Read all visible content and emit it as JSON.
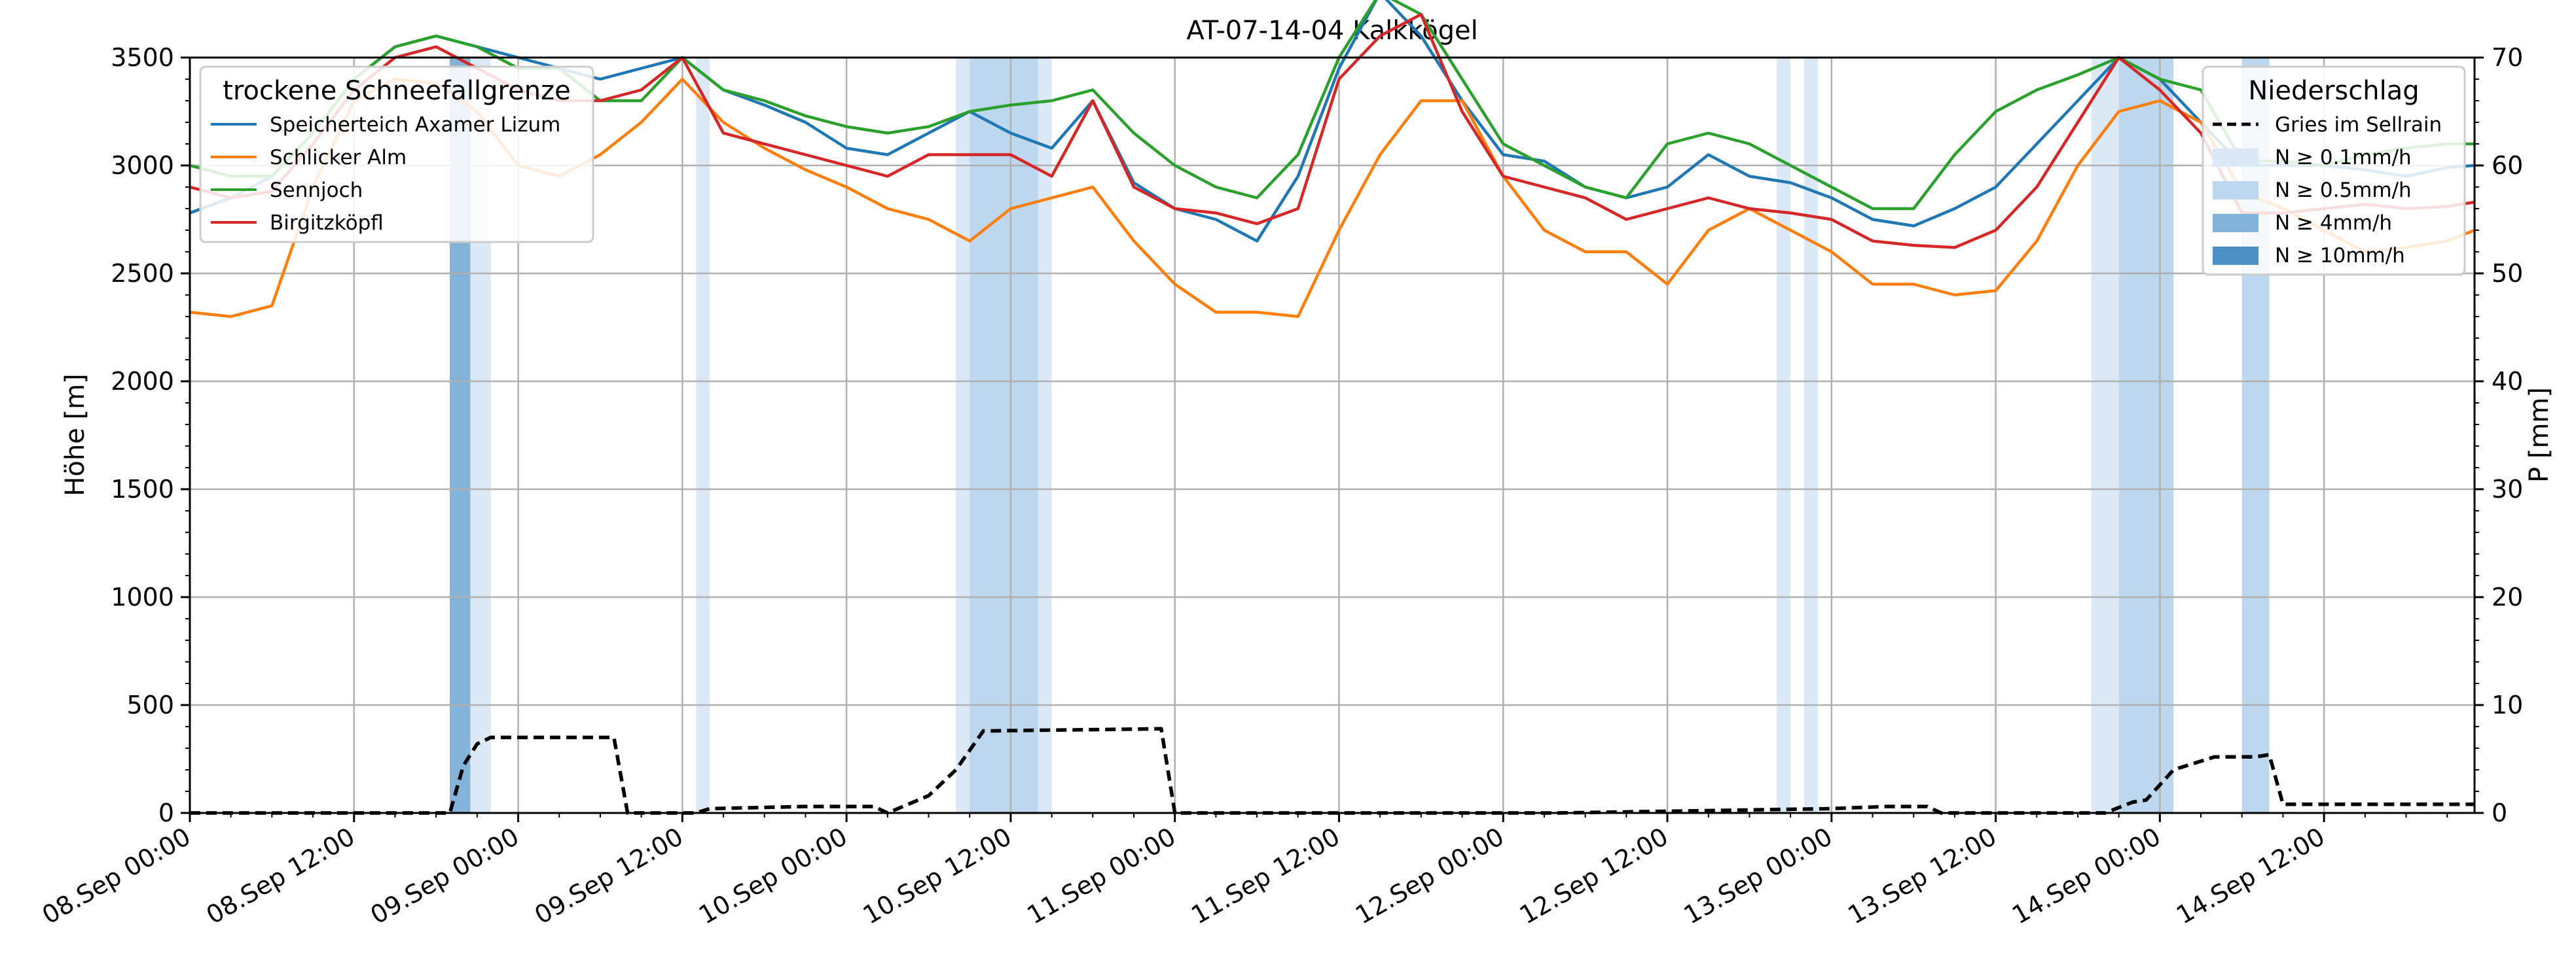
{
  "chart_data": {
    "type": "line",
    "title": "AT-07-14-04 Kalkkögel",
    "ylabel_left": "Höhe [m]",
    "ylabel_right": "P [mm]",
    "ylim_left": [
      0,
      3500
    ],
    "ylim_right": [
      0,
      70
    ],
    "yticks_left": [
      "0",
      "500",
      "1000",
      "1500",
      "2000",
      "2500",
      "3000",
      "3500"
    ],
    "yticks_right": [
      "0",
      "10",
      "20",
      "30",
      "40",
      "50",
      "60",
      "70"
    ],
    "x_range_hours": [
      0,
      167
    ],
    "x_tick_hours": [
      0,
      12,
      24,
      36,
      48,
      60,
      72,
      84,
      96,
      108,
      120,
      132,
      144,
      156
    ],
    "x_tick_labels": [
      "08.Sep 00:00",
      "08.Sep 12:00",
      "09.Sep 00:00",
      "09.Sep 12:00",
      "10.Sep 00:00",
      "10.Sep 12:00",
      "11.Sep 00:00",
      "11.Sep 12:00",
      "12.Sep 00:00",
      "12.Sep 12:00",
      "13.Sep 00:00",
      "13.Sep 12:00",
      "14.Sep 00:00",
      "14.Sep 12:00"
    ],
    "grid": true,
    "legend_left": {
      "title": "trockene Schneefallgrenze",
      "placement": "top-left",
      "entries": [
        "Speicherteich Axamer Lizum",
        "Schlicker Alm",
        "Sennjoch",
        "Birgitzköpfl"
      ]
    },
    "legend_right": {
      "title": "Niederschlag",
      "placement": "top-right",
      "entries": [
        "Gries im Sellrain",
        "N ≥ 0.1mm/h",
        "N ≥ 0.5mm/h",
        "N ≥ 4mm/h",
        "N ≥ 10mm/h"
      ]
    },
    "series": [
      {
        "name": "Speicherteich Axamer Lizum",
        "color": "#1f77b4",
        "x": [
          0,
          3,
          6,
          9,
          12,
          15,
          18,
          21,
          24,
          27,
          30,
          33,
          36,
          39,
          42,
          45,
          48,
          51,
          54,
          57,
          60,
          63,
          66,
          69,
          72,
          75,
          78,
          81,
          84,
          87,
          90,
          93,
          96,
          99,
          102,
          105,
          108,
          111,
          114,
          117,
          120,
          123,
          126,
          129,
          132,
          135,
          138,
          141,
          144,
          147,
          150,
          153,
          156,
          159,
          162,
          165,
          167
        ],
        "y": [
          2780,
          2850,
          2950,
          3150,
          3400,
          3550,
          3600,
          3550,
          3500,
          3450,
          3400,
          3450,
          3500,
          3350,
          3280,
          3200,
          3080,
          3050,
          3150,
          3250,
          3150,
          3080,
          3300,
          2920,
          2800,
          2750,
          2650,
          2950,
          3450,
          3800,
          3600,
          3300,
          3050,
          3020,
          2900,
          2850,
          2900,
          3050,
          2950,
          2920,
          2850,
          2750,
          2720,
          2800,
          2900,
          3100,
          3300,
          3500,
          3400,
          3200,
          3000,
          3000,
          3000,
          2980,
          2950,
          2990,
          3000
        ]
      },
      {
        "name": "Schlicker Alm",
        "color": "#ff7f0e",
        "x": [
          0,
          3,
          6,
          9,
          12,
          15,
          18,
          21,
          24,
          27,
          30,
          33,
          36,
          39,
          42,
          45,
          48,
          51,
          54,
          57,
          60,
          63,
          66,
          69,
          72,
          75,
          78,
          81,
          84,
          87,
          90,
          93,
          96,
          99,
          102,
          105,
          108,
          111,
          114,
          117,
          120,
          123,
          126,
          129,
          132,
          135,
          138,
          141,
          144,
          147,
          150,
          153,
          156,
          159,
          162,
          165,
          167
        ],
        "y": [
          2320,
          2300,
          2350,
          2900,
          3300,
          3400,
          3380,
          3250,
          3000,
          2950,
          3050,
          3200,
          3400,
          3200,
          3080,
          2980,
          2900,
          2800,
          2750,
          2650,
          2800,
          2850,
          2900,
          2650,
          2450,
          2320,
          2320,
          2300,
          2700,
          3050,
          3300,
          3300,
          2950,
          2700,
          2600,
          2600,
          2450,
          2700,
          2800,
          2700,
          2600,
          2450,
          2450,
          2400,
          2420,
          2650,
          3000,
          3250,
          3300,
          3200,
          2880,
          2800,
          2700,
          2600,
          2620,
          2650,
          2700
        ]
      },
      {
        "name": "Sennjoch",
        "color": "#2ca02c",
        "x": [
          0,
          3,
          6,
          9,
          12,
          15,
          18,
          21,
          24,
          27,
          30,
          33,
          36,
          39,
          42,
          45,
          48,
          51,
          54,
          57,
          60,
          63,
          66,
          69,
          72,
          75,
          78,
          81,
          84,
          87,
          90,
          93,
          96,
          99,
          102,
          105,
          108,
          111,
          114,
          117,
          120,
          123,
          126,
          129,
          132,
          135,
          138,
          141,
          144,
          147,
          150,
          153,
          156,
          159,
          162,
          165,
          167
        ],
        "y": [
          3000,
          2950,
          2950,
          3150,
          3400,
          3550,
          3600,
          3550,
          3450,
          3450,
          3300,
          3300,
          3500,
          3350,
          3300,
          3230,
          3180,
          3150,
          3180,
          3250,
          3280,
          3300,
          3350,
          3150,
          3000,
          2900,
          2850,
          3050,
          3500,
          3800,
          3700,
          3400,
          3100,
          3000,
          2900,
          2850,
          3100,
          3150,
          3100,
          3000,
          2900,
          2800,
          2800,
          3050,
          3250,
          3350,
          3420,
          3500,
          3400,
          3350,
          3020,
          3020,
          3000,
          3050,
          3080,
          3100,
          3100
        ]
      },
      {
        "name": "Birgitzköpfl",
        "color": "#d62728",
        "x": [
          0,
          3,
          6,
          9,
          12,
          15,
          18,
          21,
          24,
          27,
          30,
          33,
          36,
          39,
          42,
          45,
          48,
          51,
          54,
          57,
          60,
          63,
          66,
          69,
          72,
          75,
          78,
          81,
          84,
          87,
          90,
          93,
          96,
          99,
          102,
          105,
          108,
          111,
          114,
          117,
          120,
          123,
          126,
          129,
          132,
          135,
          138,
          141,
          144,
          147,
          150,
          153,
          156,
          159,
          162,
          165,
          167
        ],
        "y": [
          2900,
          2850,
          2880,
          3100,
          3350,
          3500,
          3550,
          3450,
          3350,
          3300,
          3300,
          3350,
          3500,
          3150,
          3100,
          3050,
          3000,
          2950,
          3050,
          3050,
          3050,
          2950,
          3300,
          2900,
          2800,
          2780,
          2730,
          2800,
          3400,
          3600,
          3700,
          3250,
          2950,
          2900,
          2850,
          2750,
          2800,
          2850,
          2800,
          2780,
          2750,
          2650,
          2630,
          2620,
          2700,
          2900,
          3200,
          3500,
          3350,
          3150,
          2780,
          2780,
          2800,
          2820,
          2800,
          2810,
          2830
        ]
      },
      {
        "name": "Gries im Sellrain",
        "color": "#000000",
        "dashed": true,
        "x": [
          0,
          19,
          20,
          21,
          22,
          27,
          31,
          32,
          37,
          38,
          45,
          50,
          51,
          54,
          56,
          58,
          71,
          72,
          100,
          120,
          124,
          127,
          128,
          136,
          140,
          142,
          143,
          144,
          145,
          148,
          151,
          152,
          153,
          167
        ],
        "y": [
          0,
          0,
          220,
          320,
          350,
          350,
          350,
          0,
          0,
          20,
          30,
          30,
          0,
          80,
          200,
          380,
          390,
          0,
          0,
          20,
          30,
          30,
          0,
          0,
          0,
          50,
          60,
          130,
          200,
          260,
          260,
          270,
          40,
          40
        ]
      }
    ],
    "precipitation_bands": [
      {
        "x0": 19,
        "x1": 22,
        "level": 1
      },
      {
        "x0": 19,
        "x1": 20.5,
        "level": 3
      },
      {
        "x0": 37,
        "x1": 38,
        "level": 1
      },
      {
        "x0": 56,
        "x1": 63,
        "level": 1
      },
      {
        "x0": 57,
        "x1": 62,
        "level": 2
      },
      {
        "x0": 116,
        "x1": 117,
        "level": 1
      },
      {
        "x0": 118,
        "x1": 119,
        "level": 1
      },
      {
        "x0": 139,
        "x1": 141,
        "level": 1
      },
      {
        "x0": 141,
        "x1": 145,
        "level": 2
      },
      {
        "x0": 150,
        "x1": 152,
        "level": 2
      }
    ],
    "band_colors": [
      "#eef4fb",
      "#dbe9f6",
      "#bdd7ee",
      "#84b3d9",
      "#4a90c4"
    ]
  }
}
